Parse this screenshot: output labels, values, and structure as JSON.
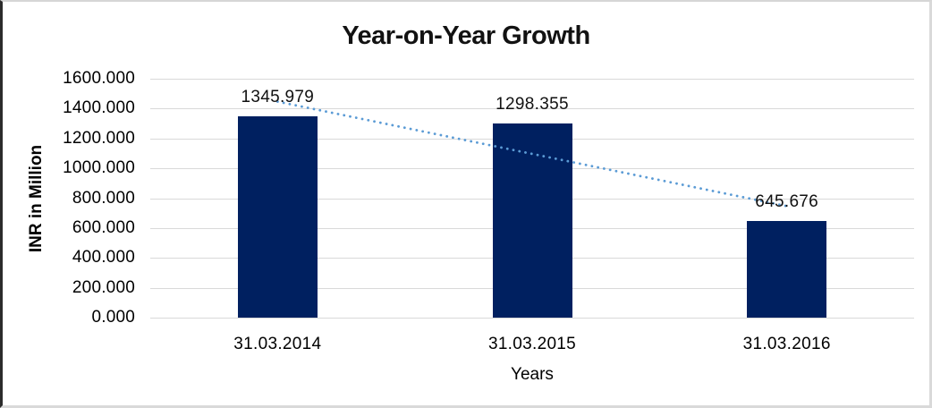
{
  "chart_data": {
    "type": "bar",
    "title": "Year-on-Year Growth",
    "xlabel": "Years",
    "ylabel": "INR in Million",
    "categories": [
      "31.03.2014",
      "31.03.2015",
      "31.03.2016"
    ],
    "values": [
      1345.979,
      1298.355,
      645.676
    ],
    "data_labels": [
      "1345.979",
      "1298.355",
      "645.676"
    ],
    "ylim": [
      0,
      1600
    ],
    "ytick_step": 200,
    "ytick_labels": [
      "0.000",
      "200.000",
      "400.000",
      "600.000",
      "800.000",
      "1000.000",
      "1200.000",
      "1400.000",
      "1600.000"
    ],
    "grid": true,
    "legend": "none",
    "bar_color": "#002060",
    "text_color": "#000000",
    "gridline_color": "#d9d9d9",
    "trendline": {
      "type": "linear",
      "line_style": "dotted",
      "color": "#5B9BD5"
    }
  }
}
